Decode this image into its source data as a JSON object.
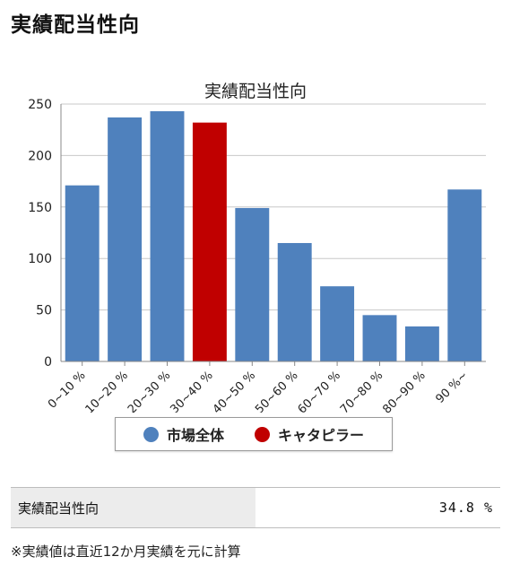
{
  "page": {
    "heading": "実績配当性向"
  },
  "chart_data": {
    "type": "bar",
    "title": "実績配当性向",
    "categories": [
      "0~10 %",
      "10~20 %",
      "20~30 %",
      "30~40 %",
      "40~50 %",
      "50~60 %",
      "60~70 %",
      "70~80 %",
      "80~90 %",
      "90 %~"
    ],
    "values": [
      171,
      237,
      243,
      232,
      149,
      115,
      73,
      45,
      34,
      167
    ],
    "highlight_index": 3,
    "ylim": [
      0,
      250
    ],
    "yticks": [
      0,
      50,
      100,
      150,
      200,
      250
    ],
    "grid": true,
    "legend_position": "bottom",
    "colors": {
      "market": "#4f81bd",
      "highlight": "#c00000"
    },
    "legend": [
      {
        "label": "市場全体",
        "color": "#4f81bd"
      },
      {
        "label": "キャタピラー",
        "color": "#c00000"
      }
    ]
  },
  "metric": {
    "label": "実績配当性向",
    "value": "34.8 %"
  },
  "footnote": "※実績値は直近12か月実績を元に計算"
}
